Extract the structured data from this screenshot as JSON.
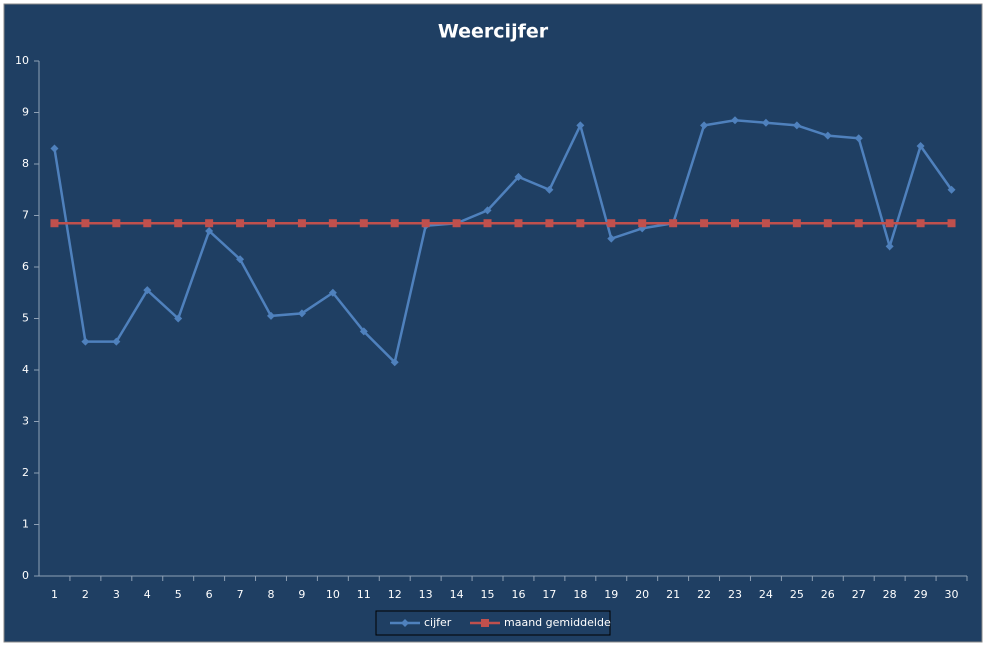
{
  "chart_data": {
    "type": "line",
    "title": "Weercijfer",
    "categories": [
      "1",
      "2",
      "3",
      "4",
      "5",
      "6",
      "7",
      "8",
      "9",
      "10",
      "11",
      "12",
      "13",
      "14",
      "15",
      "16",
      "17",
      "18",
      "19",
      "20",
      "21",
      "22",
      "23",
      "24",
      "25",
      "26",
      "27",
      "28",
      "29",
      "30"
    ],
    "series": [
      {
        "name": "cijfer",
        "color": "#4f81bd",
        "marker": "diamond",
        "values": [
          8.3,
          4.55,
          4.55,
          5.55,
          5,
          6.7,
          6.15,
          5.05,
          5.1,
          5.5,
          4.75,
          4.15,
          6.8,
          6.85,
          7.1,
          7.75,
          7.5,
          8.75,
          6.55,
          6.75,
          6.85,
          8.75,
          8.85,
          8.8,
          8.75,
          8.55,
          8.5,
          6.4,
          8.35,
          7.5
        ]
      },
      {
        "name": "maand gemiddelde",
        "color": "#c0504d",
        "marker": "square",
        "values": [
          6.85,
          6.85,
          6.85,
          6.85,
          6.85,
          6.85,
          6.85,
          6.85,
          6.85,
          6.85,
          6.85,
          6.85,
          6.85,
          6.85,
          6.85,
          6.85,
          6.85,
          6.85,
          6.85,
          6.85,
          6.85,
          6.85,
          6.85,
          6.85,
          6.85,
          6.85,
          6.85,
          6.85,
          6.85,
          6.85
        ]
      }
    ],
    "ylim": [
      0,
      10
    ],
    "yticks": [
      0,
      1,
      2,
      3,
      4,
      5,
      6,
      7,
      8,
      9,
      10
    ],
    "grid": false,
    "legend": "bottom"
  }
}
